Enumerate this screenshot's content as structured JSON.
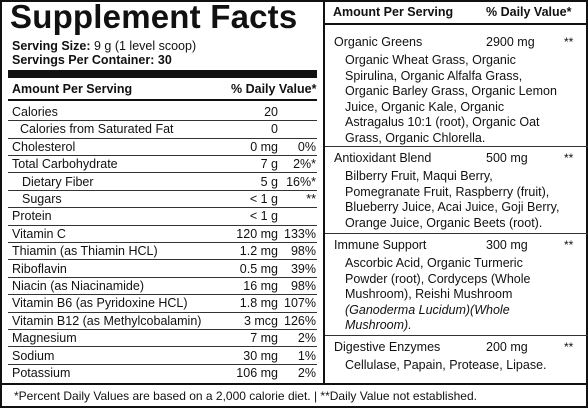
{
  "title": "Supplement Facts",
  "serving_size_label": "Serving Size:",
  "serving_size_value": "9 g (1 level scoop)",
  "servings_label": "Servings Per Container:",
  "servings_value": "30",
  "left_header": {
    "amount": "Amount Per Serving",
    "dv": "% Daily Value*"
  },
  "nutrients": [
    {
      "name": "Calories",
      "amount": "20",
      "dv": ""
    },
    {
      "name": "Calories from Saturated Fat",
      "amount": "0",
      "dv": ""
    },
    {
      "name": "Cholesterol",
      "amount": "0 mg",
      "dv": "0%"
    },
    {
      "name": "Total Carbohydrate",
      "amount": "7 g",
      "dv": "2%*"
    },
    {
      "name": "Dietary Fiber",
      "amount": "5 g",
      "dv": "16%*"
    },
    {
      "name": "Sugars",
      "amount": "< 1 g",
      "dv": "**"
    },
    {
      "name": "Protein",
      "amount": "< 1 g",
      "dv": ""
    },
    {
      "name": "Vitamin C",
      "amount": "120 mg",
      "dv": "133%"
    },
    {
      "name": "Thiamin (as Thiamin HCL)",
      "amount": "1.2 mg",
      "dv": "98%"
    },
    {
      "name": "Riboflavin",
      "amount": "0.5 mg",
      "dv": "39%"
    },
    {
      "name": "Niacin (as Niacinamide)",
      "amount": "16 mg",
      "dv": "98%"
    },
    {
      "name": "Vitamin B6 (as Pyridoxine HCL)",
      "amount": "1.8 mg",
      "dv": "107%"
    },
    {
      "name": "Vitamin B12 (as Methylcobalamin)",
      "amount": "3 mcg",
      "dv": "126%"
    },
    {
      "name": "Magnesium",
      "amount": "7 mg",
      "dv": "2%"
    },
    {
      "name": "Sodium",
      "amount": "30 mg",
      "dv": "1%"
    },
    {
      "name": "Potassium",
      "amount": "106 mg",
      "dv": "2%"
    }
  ],
  "right_header": {
    "amount": "Amount Per Serving",
    "dv": "% Daily Value*"
  },
  "blends": [
    {
      "name": "Organic Greens",
      "amount": "2900 mg",
      "dv": "**",
      "lines": [
        "Organic Wheat Grass, Organic",
        "Spirulina, Organic Alfalfa Grass,",
        "Organic Barley Grass, Organic Lemon",
        "Juice, Organic Kale, Organic",
        "Astragalus 10:1 (root), Organic Oat",
        "Grass, Organic Chlorella."
      ]
    },
    {
      "name": "Antioxidant Blend",
      "amount": "500 mg",
      "dv": "**",
      "lines": [
        "Bilberry Fruit, Maqui Berry,",
        "Pomegranate Fruit, Raspberry (fruit),",
        "Blueberry Juice, Acai Juice, Goji Berry,",
        "Orange Juice, Organic Beets (root)."
      ]
    },
    {
      "name": "Immune Support",
      "amount": "300 mg",
      "dv": "**",
      "lines": [
        "Ascorbic Acid, Organic Turmeric",
        "Powder (root), Cordyceps (Whole",
        "Mushroom),  Reishi Mushroom"
      ],
      "italic_lines": [
        "(Ganoderma Lucidum)(Whole",
        "Mushroom)."
      ]
    },
    {
      "name": "Digestive Enzymes",
      "amount": "200 mg",
      "dv": "**",
      "lines": [
        "Cellulase, Papain, Protease, Lipase."
      ]
    }
  ],
  "footnote": "*Percent Daily Values are based on a 2,000 calorie diet.  |  **Daily Value not established."
}
